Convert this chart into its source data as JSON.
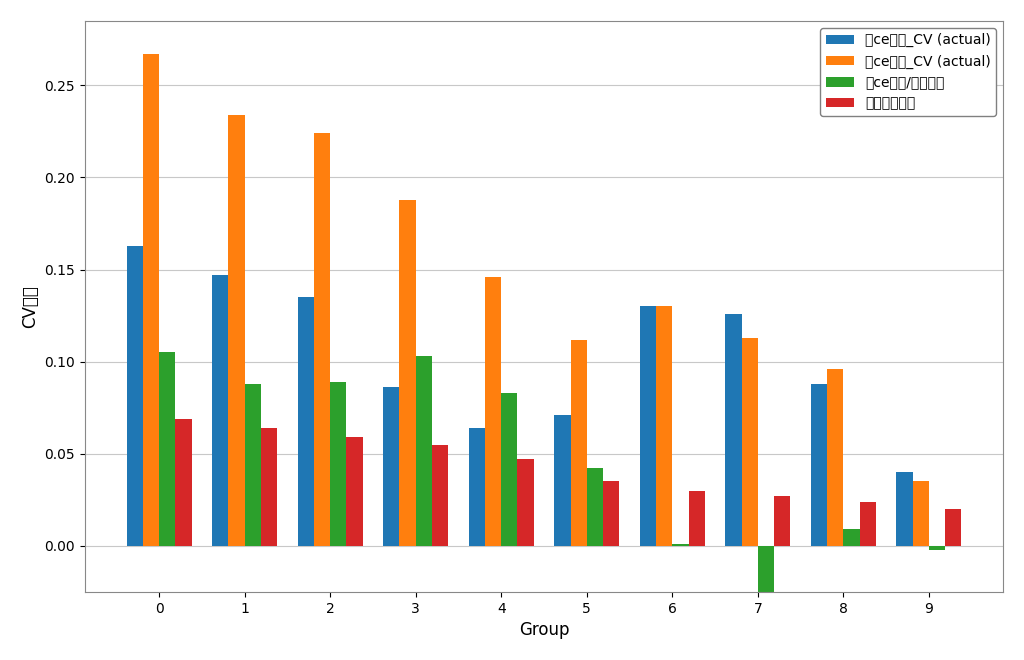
{
  "groups": [
    0,
    1,
    2,
    3,
    4,
    5,
    6,
    7,
    8,
    9
  ],
  "series0": [
    0.163,
    0.147,
    0.135,
    0.086,
    0.064,
    0.071,
    0.13,
    0.126,
    0.088,
    0.04
  ],
  "series1": [
    0.267,
    0.234,
    0.224,
    0.188,
    0.146,
    0.112,
    0.13,
    0.113,
    0.096,
    0.035
  ],
  "series2": [
    0.105,
    0.088,
    0.089,
    0.103,
    0.083,
    0.042,
    0.001,
    -0.033,
    0.009,
    -0.002
  ],
  "series3": [
    0.069,
    0.064,
    0.059,
    0.055,
    0.047,
    0.035,
    0.03,
    0.027,
    0.024,
    0.02
  ],
  "bar_colors": [
    "#1f77b4",
    "#ff7f0e",
    "#2ca02c",
    "#d62728"
  ],
  "legend_labels": [
    "施ceなし_CV (actual)",
    "施ceあり_CV (actual)",
    "施ceあり/なしの差",
    "アップリフト"
  ],
  "xlabel": "Group",
  "ylabel": "CV確率",
  "ylim_min": -0.025,
  "ylim_max": 0.285,
  "background_color": "#ffffff",
  "bar_width": 0.19,
  "figsize": [
    10.24,
    6.6
  ],
  "dpi": 100,
  "yticks": [
    0.0,
    0.05,
    0.1,
    0.15,
    0.2,
    0.25
  ]
}
